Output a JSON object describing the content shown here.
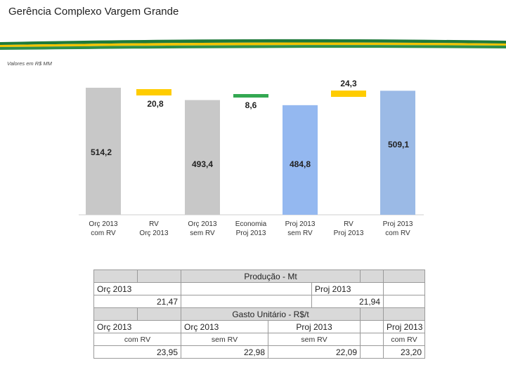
{
  "page": {
    "title": "Gerência Complexo Vargem Grande",
    "units": "Valores em R$ MM"
  },
  "colors": {
    "gray": "#c8c8c8",
    "yellow": "#ffcc00",
    "green": "#33a852",
    "blue_light": "#94b8f0",
    "blue_mid": "#9bbae6",
    "band_green": "#1f7a3a",
    "band_yellow": "#f2c300"
  },
  "chart_data": {
    "type": "bar",
    "subtype": "waterfall",
    "categories": [
      "Orç 2013\ncom RV",
      "RV\nOrç 2013",
      "Orç 2013\nsem RV",
      "Economia\nProj 2013",
      "Proj 2013\nsem RV",
      "RV\nProj 2013",
      "Proj 2013\ncom RV"
    ],
    "category_lines": [
      [
        "Orç 2013",
        "com RV"
      ],
      [
        "RV",
        "Orç 2013"
      ],
      [
        "Orç 2013",
        "sem RV"
      ],
      [
        "Economia",
        "Proj 2013"
      ],
      [
        "Proj 2013",
        "sem RV"
      ],
      [
        "RV",
        "Proj 2013"
      ],
      [
        "Proj 2013",
        "com RV"
      ]
    ],
    "values": [
      514.2,
      20.8,
      493.4,
      8.6,
      484.8,
      24.3,
      509.1
    ],
    "labels": [
      "514,2",
      "20,8",
      "493,4",
      "8,6",
      "484,8",
      "24,3",
      "509,1"
    ],
    "kinds": [
      "total",
      "change",
      "total",
      "change",
      "total",
      "change",
      "total"
    ],
    "title": "",
    "xlabel": "",
    "ylabel": "",
    "ylim": [
      0,
      550
    ]
  },
  "table": {
    "producao_title": "Produção - Mt",
    "producao_orc_label": "Orç 2013",
    "producao_proj_label": "Proj 2013",
    "producao_orc_value": "21,47",
    "producao_proj_value": "21,94",
    "gasto_title": "Gasto Unitário - R$/t",
    "cols": [
      {
        "line1": "Orç 2013",
        "line2": "com RV",
        "value": "23,95"
      },
      {
        "line1": "Orç 2013",
        "line2": "sem RV",
        "value": "22,98"
      },
      {
        "line1": "Proj 2013",
        "line2": "sem RV",
        "value": "22,09"
      },
      {
        "line1": "Proj 2013",
        "line2": "com RV",
        "value": "23,20"
      }
    ]
  }
}
